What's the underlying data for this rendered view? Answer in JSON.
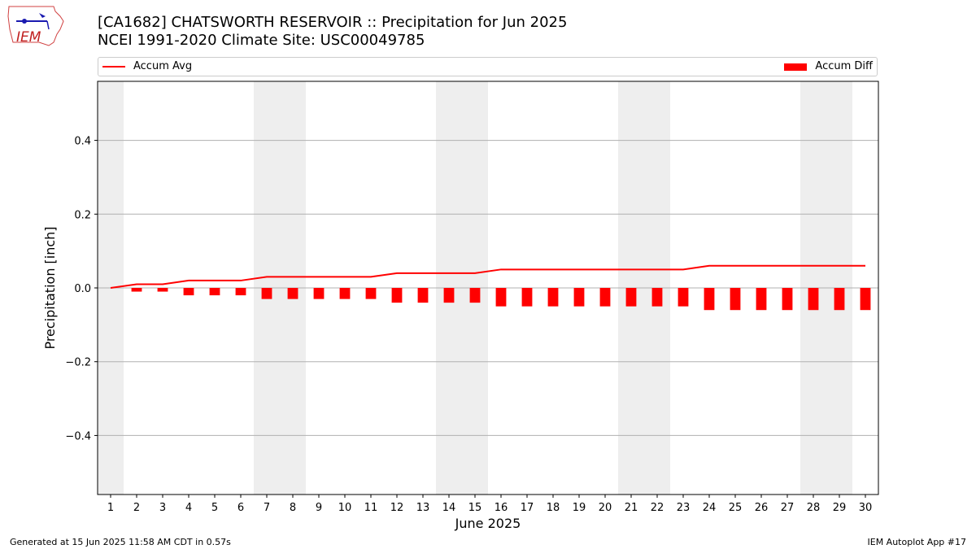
{
  "header": {
    "title_line1": "[CA1682] CHATSWORTH RESERVOIR :: Precipitation for Jun 2025",
    "title_line2": "NCEI 1991-2020 Climate Site: USC00049785"
  },
  "logo": {
    "text": "IEM"
  },
  "footer": {
    "generated": "Generated at 15 Jun 2025 11:58 AM CDT in 0.57s",
    "app": "IEM Autoplot App #17"
  },
  "colors": {
    "series": "#ff0000",
    "weekend_shade": "#eeeeee",
    "grid": "#b0b0b0"
  },
  "chart_data": {
    "type": "bar",
    "xlabel": "June 2025",
    "ylabel": "Precipitation [inch]",
    "ylim": [
      -0.56,
      0.56
    ],
    "xlim": [
      0.5,
      30.5
    ],
    "yticks": [
      -0.4,
      -0.2,
      0.0,
      0.2,
      0.4
    ],
    "ytick_labels": [
      "−0.4",
      "−0.2",
      "0.0",
      "0.2",
      "0.4"
    ],
    "grid": "y",
    "legend_placement": "top, above plot",
    "weekend_days": [
      1,
      7,
      8,
      14,
      15,
      21,
      22,
      28,
      29
    ],
    "x": [
      1,
      2,
      3,
      4,
      5,
      6,
      7,
      8,
      9,
      10,
      11,
      12,
      13,
      14,
      15,
      16,
      17,
      18,
      19,
      20,
      21,
      22,
      23,
      24,
      25,
      26,
      27,
      28,
      29,
      30
    ],
    "series": [
      {
        "name": "Accum Avg",
        "kind": "line",
        "values": [
          0.0,
          0.01,
          0.01,
          0.02,
          0.02,
          0.02,
          0.03,
          0.03,
          0.03,
          0.03,
          0.03,
          0.04,
          0.04,
          0.04,
          0.04,
          0.05,
          0.05,
          0.05,
          0.05,
          0.05,
          0.05,
          0.05,
          0.05,
          0.06,
          0.06,
          0.06,
          0.06,
          0.06,
          0.06,
          0.06
        ]
      },
      {
        "name": "Accum Diff",
        "kind": "bar",
        "values": [
          0.0,
          -0.01,
          -0.01,
          -0.02,
          -0.02,
          -0.02,
          -0.03,
          -0.03,
          -0.03,
          -0.03,
          -0.03,
          -0.04,
          -0.04,
          -0.04,
          -0.04,
          -0.05,
          -0.05,
          -0.05,
          -0.05,
          -0.05,
          -0.05,
          -0.05,
          -0.05,
          -0.06,
          -0.06,
          -0.06,
          -0.06,
          -0.06,
          -0.06,
          -0.06
        ]
      }
    ]
  }
}
